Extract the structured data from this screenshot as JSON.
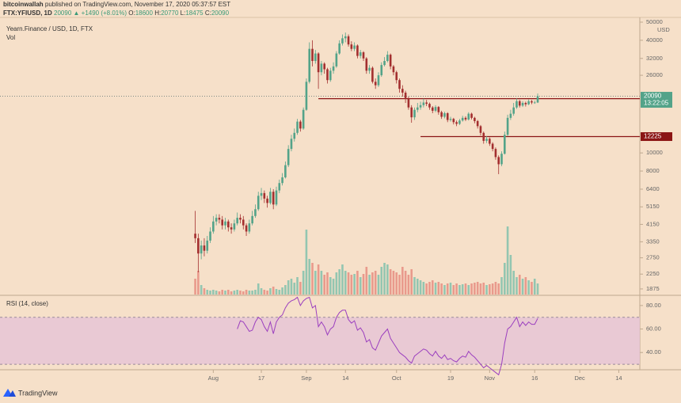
{
  "header": {
    "author": "bitcoinwallah",
    "published": "published on TradingView.com, November 17, 2020 05:37:57 EST",
    "symbol": "FTX:YFIUSD, 1D",
    "change": "▲ +1490 (+8.01%)",
    "ohlc_labels": [
      "O:",
      "H:",
      "L:",
      "C:"
    ]
  },
  "chart_data": {
    "type": "candlestick",
    "title": "Yearn.Finance / USD, 1D, FTX",
    "volume_label": "Vol",
    "rsi_title": "RSI (14, close)",
    "log_scale": true,
    "up_color": "#53a389",
    "down_color": "#a32f2f",
    "vol_up_color": "#93c6b1",
    "vol_down_color": "#e99a8c",
    "rsi_color": "#9b3fbf",
    "x": [
      "2020-07-26",
      "2020-07-27",
      "2020-07-28",
      "2020-07-29",
      "2020-07-30",
      "2020-07-31",
      "2020-08-01",
      "2020-08-02",
      "2020-08-03",
      "2020-08-04",
      "2020-08-05",
      "2020-08-06",
      "2020-08-07",
      "2020-08-08",
      "2020-08-09",
      "2020-08-10",
      "2020-08-11",
      "2020-08-12",
      "2020-08-13",
      "2020-08-14",
      "2020-08-15",
      "2020-08-16",
      "2020-08-17",
      "2020-08-18",
      "2020-08-19",
      "2020-08-20",
      "2020-08-21",
      "2020-08-22",
      "2020-08-23",
      "2020-08-24",
      "2020-08-25",
      "2020-08-26",
      "2020-08-27",
      "2020-08-28",
      "2020-08-29",
      "2020-08-30",
      "2020-08-31",
      "2020-09-01",
      "2020-09-02",
      "2020-09-03",
      "2020-09-04",
      "2020-09-05",
      "2020-09-06",
      "2020-09-07",
      "2020-09-08",
      "2020-09-09",
      "2020-09-10",
      "2020-09-11",
      "2020-09-12",
      "2020-09-13",
      "2020-09-14",
      "2020-09-15",
      "2020-09-16",
      "2020-09-17",
      "2020-09-18",
      "2020-09-19",
      "2020-09-20",
      "2020-09-21",
      "2020-09-22",
      "2020-09-23",
      "2020-09-24",
      "2020-09-25",
      "2020-09-26",
      "2020-09-27",
      "2020-09-28",
      "2020-09-29",
      "2020-09-30",
      "2020-10-01",
      "2020-10-02",
      "2020-10-03",
      "2020-10-04",
      "2020-10-05",
      "2020-10-06",
      "2020-10-07",
      "2020-10-08",
      "2020-10-09",
      "2020-10-10",
      "2020-10-11",
      "2020-10-12",
      "2020-10-13",
      "2020-10-14",
      "2020-10-15",
      "2020-10-16",
      "2020-10-17",
      "2020-10-18",
      "2020-10-19",
      "2020-10-20",
      "2020-10-21",
      "2020-10-22",
      "2020-10-23",
      "2020-10-24",
      "2020-10-25",
      "2020-10-26",
      "2020-10-27",
      "2020-10-28",
      "2020-10-29",
      "2020-10-30",
      "2020-10-31",
      "2020-11-01",
      "2020-11-02",
      "2020-11-03",
      "2020-11-04",
      "2020-11-05",
      "2020-11-06",
      "2020-11-07",
      "2020-11-08",
      "2020-11-09",
      "2020-11-10",
      "2020-11-11",
      "2020-11-12",
      "2020-11-13",
      "2020-11-14",
      "2020-11-15",
      "2020-11-16",
      "2020-11-17"
    ],
    "open": [
      3700,
      3500,
      2900,
      3200,
      3000,
      3400,
      3800,
      4300,
      4500,
      4400,
      4100,
      4300,
      4000,
      3900,
      4200,
      4500,
      4400,
      4100,
      3800,
      4200,
      4600,
      5000,
      5900,
      6100,
      5700,
      5400,
      6200,
      5300,
      6300,
      6900,
      7400,
      8600,
      10500,
      11900,
      12800,
      14700,
      13500,
      17000,
      24000,
      36000,
      31000,
      34000,
      27000,
      30000,
      28000,
      24500,
      27500,
      29000,
      34000,
      38500,
      41000,
      42000,
      38000,
      36000,
      37500,
      33000,
      34500,
      32000,
      27500,
      28500,
      24000,
      23000,
      26000,
      29500,
      31000,
      33500,
      29000,
      27000,
      24500,
      22000,
      21000,
      19500,
      17500,
      15500,
      17000,
      17500,
      18000,
      18600,
      18300,
      17500,
      16800,
      17600,
      16500,
      15600,
      16300,
      15000,
      15200,
      14600,
      14300,
      14900,
      15400,
      15100,
      16200,
      15400,
      14800,
      13900,
      12800,
      11600,
      11900,
      11200,
      10500,
      9500,
      8700,
      9900,
      12500,
      15400,
      16200,
      17500,
      18900,
      17900,
      18500,
      18200,
      18900,
      18600,
      18600
    ],
    "high": [
      4900,
      3700,
      3400,
      3500,
      3600,
      4000,
      4600,
      4700,
      4700,
      4600,
      4500,
      4400,
      4200,
      4400,
      4800,
      4700,
      4600,
      4200,
      4400,
      4900,
      5300,
      6200,
      6500,
      6300,
      5900,
      6500,
      6400,
      6600,
      7200,
      7800,
      9000,
      11000,
      12500,
      13500,
      15200,
      15000,
      17500,
      25000,
      39000,
      40000,
      35500,
      34500,
      31000,
      30500,
      28500,
      28500,
      30500,
      35000,
      40000,
      43000,
      44000,
      43000,
      39500,
      39000,
      38000,
      35500,
      35000,
      32500,
      29500,
      29000,
      25000,
      27000,
      30500,
      32500,
      35000,
      34000,
      29500,
      27500,
      25000,
      23000,
      21500,
      20000,
      18000,
      17500,
      18500,
      18800,
      19500,
      19200,
      18600,
      17800,
      18000,
      17800,
      16800,
      16600,
      16500,
      15600,
      15400,
      14900,
      15200,
      15800,
      15700,
      16500,
      16400,
      15600,
      15000,
      14100,
      13000,
      12300,
      12100,
      11400,
      10700,
      9700,
      10200,
      13000,
      16000,
      17000,
      18500,
      19600,
      19200,
      18900,
      18800,
      19300,
      19200,
      19000,
      20770
    ],
    "low": [
      3300,
      2300,
      2700,
      2800,
      2900,
      3300,
      3700,
      4100,
      4200,
      3900,
      3900,
      3800,
      3700,
      3800,
      4100,
      4200,
      3900,
      3600,
      3700,
      4100,
      4500,
      4900,
      5600,
      5400,
      5100,
      5300,
      5000,
      5200,
      6100,
      6700,
      7300,
      8400,
      10200,
      11500,
      12500,
      13000,
      13300,
      16800,
      23500,
      29000,
      30000,
      22000,
      26000,
      26500,
      23500,
      24000,
      26500,
      28500,
      33500,
      37500,
      39000,
      37000,
      35000,
      35000,
      32000,
      32000,
      31000,
      26500,
      26500,
      23500,
      22000,
      22500,
      25500,
      29000,
      30500,
      28000,
      26000,
      23500,
      21000,
      20000,
      18500,
      17000,
      14500,
      15000,
      16500,
      17000,
      17500,
      17800,
      17000,
      16300,
      16500,
      16000,
      15200,
      15300,
      14600,
      14700,
      14200,
      13900,
      14100,
      14700,
      14800,
      14900,
      15100,
      14400,
      13500,
      12400,
      11200,
      11300,
      10900,
      10200,
      9200,
      7700,
      8500,
      9800,
      12300,
      15000,
      15800,
      17200,
      17500,
      17600,
      17700,
      18000,
      18200,
      18300,
      18475
    ],
    "close": [
      3500,
      2900,
      3200,
      3000,
      3400,
      3800,
      4300,
      4500,
      4400,
      4100,
      4300,
      4000,
      3900,
      4200,
      4500,
      4400,
      4100,
      3800,
      4200,
      4600,
      5000,
      5900,
      6100,
      5700,
      5400,
      6200,
      5300,
      6300,
      6900,
      7400,
      8600,
      10500,
      11900,
      12800,
      14700,
      13500,
      17000,
      24000,
      36000,
      31000,
      34000,
      27000,
      30000,
      28000,
      24500,
      27500,
      29000,
      34000,
      38500,
      41000,
      42000,
      38000,
      36000,
      37500,
      33000,
      34500,
      32000,
      27500,
      28500,
      24000,
      23000,
      26000,
      29500,
      31000,
      33500,
      29000,
      27000,
      24500,
      22000,
      21000,
      19500,
      17500,
      15500,
      17000,
      17500,
      18000,
      18600,
      18300,
      17500,
      16800,
      17600,
      16500,
      15600,
      16300,
      15000,
      15200,
      14600,
      14300,
      14900,
      15400,
      15100,
      16200,
      15400,
      14800,
      13900,
      12800,
      11600,
      11900,
      11200,
      10500,
      9500,
      8700,
      9900,
      12500,
      15400,
      16200,
      17500,
      18900,
      17900,
      18500,
      18200,
      18900,
      18600,
      18600,
      20090
    ],
    "volume": [
      20,
      30,
      12,
      8,
      6,
      5,
      6,
      5,
      4,
      6,
      5,
      6,
      4,
      5,
      6,
      5,
      4,
      6,
      5,
      5,
      6,
      14,
      8,
      6,
      5,
      8,
      10,
      7,
      6,
      9,
      12,
      18,
      20,
      15,
      22,
      16,
      30,
      82,
      45,
      40,
      30,
      38,
      30,
      25,
      28,
      22,
      20,
      28,
      32,
      38,
      30,
      28,
      25,
      26,
      30,
      22,
      26,
      35,
      25,
      28,
      30,
      25,
      35,
      40,
      38,
      32,
      30,
      28,
      25,
      35,
      30,
      25,
      32,
      22,
      20,
      18,
      16,
      14,
      16,
      18,
      15,
      16,
      14,
      12,
      14,
      15,
      12,
      14,
      12,
      13,
      14,
      12,
      14,
      15,
      16,
      14,
      15,
      12,
      13,
      14,
      16,
      14,
      22,
      40,
      86,
      50,
      30,
      22,
      25,
      20,
      22,
      18,
      16,
      20,
      14
    ],
    "volume_lim": [
      0,
      100
    ],
    "rsi": [
      null,
      null,
      null,
      null,
      null,
      null,
      null,
      null,
      null,
      null,
      null,
      null,
      null,
      null,
      60,
      67,
      66,
      62,
      58,
      59,
      66,
      70,
      68,
      62,
      58,
      66,
      56,
      66,
      70,
      72,
      78,
      82,
      84,
      85,
      87,
      80,
      84,
      86,
      87,
      78,
      80,
      62,
      66,
      62,
      55,
      60,
      62,
      70,
      74,
      76,
      76,
      68,
      65,
      67,
      59,
      61,
      57,
      49,
      51,
      44,
      42,
      48,
      54,
      57,
      60,
      52,
      48,
      44,
      40,
      38,
      36,
      33,
      31,
      37,
      39,
      41,
      43,
      42,
      39,
      37,
      41,
      37,
      35,
      38,
      34,
      35,
      33,
      32,
      35,
      37,
      36,
      41,
      38,
      36,
      33,
      30,
      27,
      29,
      27,
      25,
      23,
      21,
      30,
      48,
      60,
      62,
      66,
      70,
      62,
      66,
      63,
      66,
      64,
      64,
      69
    ],
    "rsi_lim": [
      26,
      88
    ],
    "rsi_band": [
      30,
      70
    ],
    "rsi_ticks": [
      {
        "value": 80,
        "label": "80.00"
      },
      {
        "value": 60,
        "label": "60.00"
      },
      {
        "value": 40,
        "label": "40.00"
      }
    ],
    "xlim": [
      "2020-05-22",
      "2020-12-21"
    ],
    "xticks": [
      {
        "value": "2020-08-01",
        "label": "Aug"
      },
      {
        "value": "2020-08-17",
        "label": "17"
      },
      {
        "value": "2020-09-01",
        "label": "Sep"
      },
      {
        "value": "2020-09-14",
        "label": "14"
      },
      {
        "value": "2020-10-01",
        "label": "Oct"
      },
      {
        "value": "2020-10-19",
        "label": "19"
      },
      {
        "value": "2020-11-01",
        "label": "Nov"
      },
      {
        "value": "2020-11-16",
        "label": "16"
      },
      {
        "value": "2020-12-01",
        "label": "Dec"
      },
      {
        "value": "2020-12-14",
        "label": "14"
      }
    ],
    "ylim": [
      1750,
      53000
    ],
    "yticks": [
      50000,
      40000,
      32000,
      26000,
      10000,
      8000,
      6400,
      5150,
      4150,
      3350,
      2750,
      2250,
      1875
    ],
    "y_unit": "USD",
    "hlines": [
      {
        "value": 19500,
        "from": "2020-09-05"
      },
      {
        "value": 12225,
        "from": "2020-10-09"
      }
    ],
    "countdown": "13:22:05"
  },
  "footer": {
    "brand": "TradingView"
  }
}
